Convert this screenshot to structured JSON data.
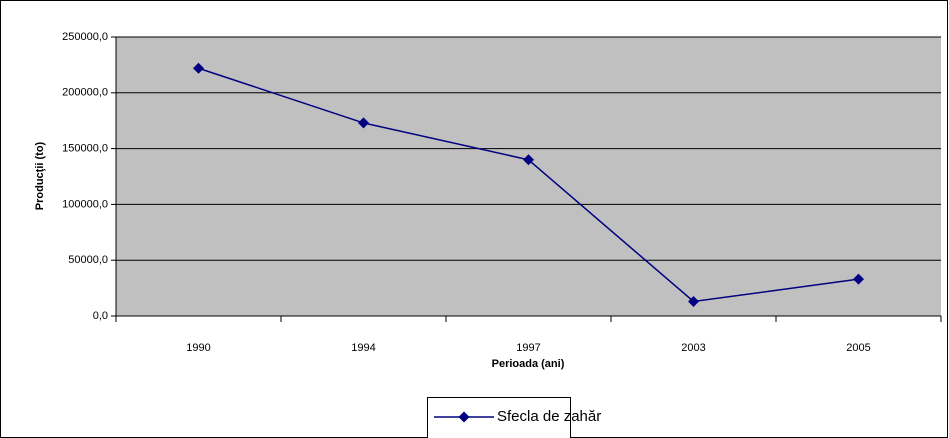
{
  "chart_data": {
    "type": "line",
    "y_label": "Producţii (to)",
    "x_label": "Perioada (ani)",
    "categories": [
      "1990",
      "1994",
      "1997",
      "2003",
      "2005"
    ],
    "series": [
      {
        "name": "Sfecla de zahăr",
        "color": "#000080",
        "values": [
          222000,
          173000,
          140000,
          13000,
          33000
        ]
      }
    ],
    "ylim": [
      0,
      250000
    ],
    "yticks": [
      {
        "value": 0,
        "label": "0,0"
      },
      {
        "value": 50000,
        "label": "50000,0"
      },
      {
        "value": 100000,
        "label": "100000,0"
      },
      {
        "value": 150000,
        "label": "150000,0"
      },
      {
        "value": 200000,
        "label": "200000,0"
      },
      {
        "value": 250000,
        "label": "250000,0"
      }
    ],
    "grid": true,
    "plot_background": "#c0c0c0"
  }
}
